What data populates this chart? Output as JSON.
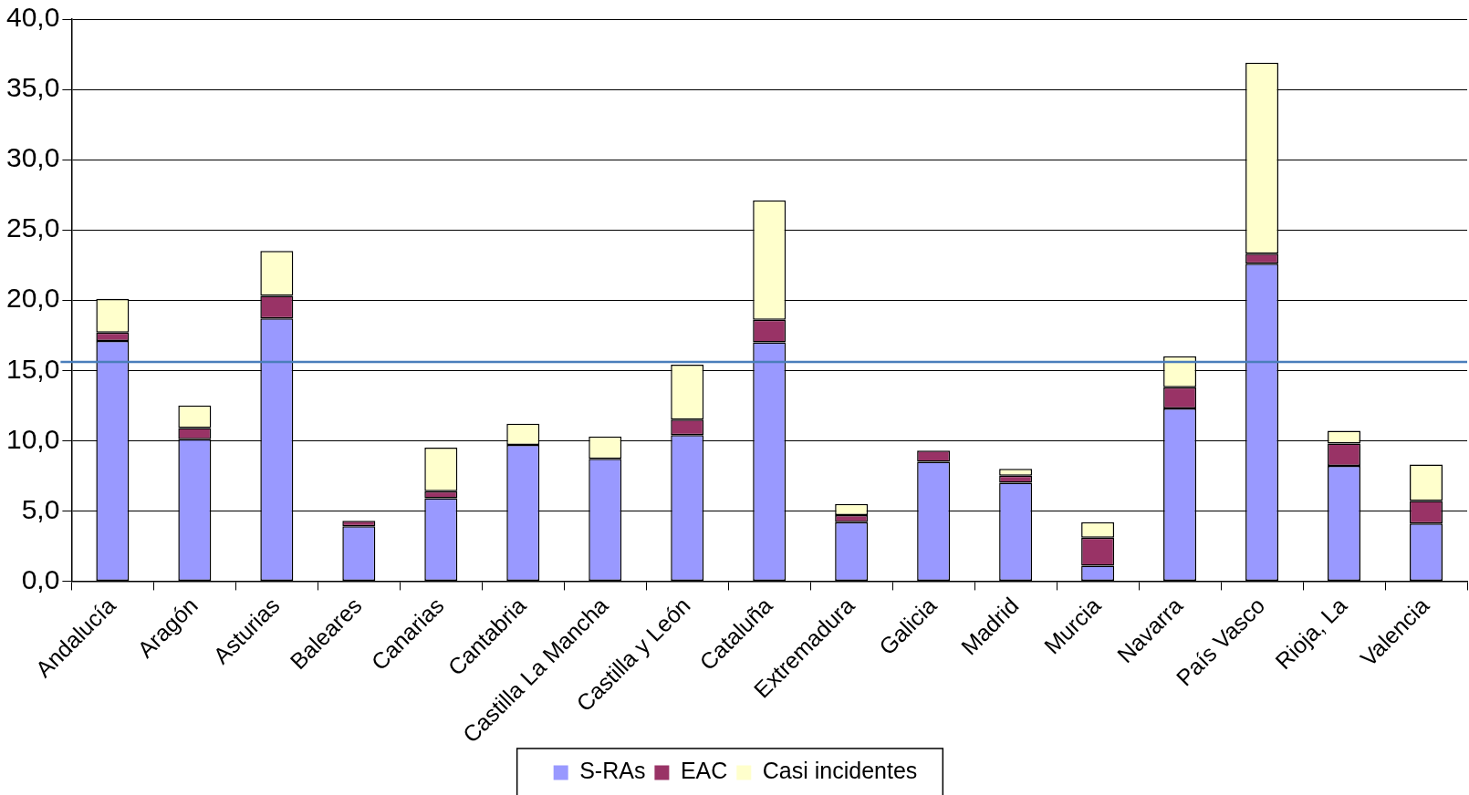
{
  "chart_data": {
    "type": "bar",
    "stacked": true,
    "categories": [
      "Andalucía",
      "Aragón",
      "Asturias",
      "Baleares",
      "Canarias",
      "Cantabria",
      "Castilla La Mancha",
      "Castilla y León",
      "Cataluña",
      "Extremadura",
      "Galicia",
      "Madrid",
      "Murcia",
      "Navarra",
      "País Vasco",
      "Rioja, La",
      "Valencia"
    ],
    "series": [
      {
        "name": "S-RAs",
        "color": "#9999ff",
        "values": [
          17.1,
          10.1,
          18.7,
          3.9,
          5.9,
          9.7,
          8.7,
          10.4,
          17.0,
          4.2,
          8.5,
          7.0,
          1.1,
          12.3,
          22.6,
          8.2,
          4.1
        ]
      },
      {
        "name": "EAC",
        "color": "#993366",
        "values": [
          0.6,
          0.8,
          1.6,
          0.4,
          0.5,
          0,
          0,
          1.1,
          1.6,
          0.5,
          0.8,
          0.5,
          2.0,
          1.5,
          0.7,
          1.6,
          1.6
        ]
      },
      {
        "name": "Casi incidentes",
        "color": "#ffffcc",
        "values": [
          2.4,
          1.6,
          3.2,
          0,
          3.1,
          1.5,
          1.6,
          3.9,
          8.5,
          0.8,
          0,
          0.5,
          1.1,
          2.2,
          13.6,
          0.9,
          2.6
        ]
      }
    ],
    "ylim": [
      0,
      40
    ],
    "yticks": [
      {
        "value": 0,
        "label": "0,0"
      },
      {
        "value": 5,
        "label": "5,0"
      },
      {
        "value": 10,
        "label": "10,0"
      },
      {
        "value": 15,
        "label": "15,0"
      },
      {
        "value": 20,
        "label": "20,0"
      },
      {
        "value": 25,
        "label": "25,0"
      },
      {
        "value": 30,
        "label": "30,0"
      },
      {
        "value": 35,
        "label": "35,0"
      },
      {
        "value": 40,
        "label": "40,0"
      }
    ],
    "grid": "y",
    "legend": "bottom",
    "ref_lines": [
      {
        "axis": "y",
        "value": 15.6,
        "color": "#4a7ebb"
      }
    ]
  }
}
